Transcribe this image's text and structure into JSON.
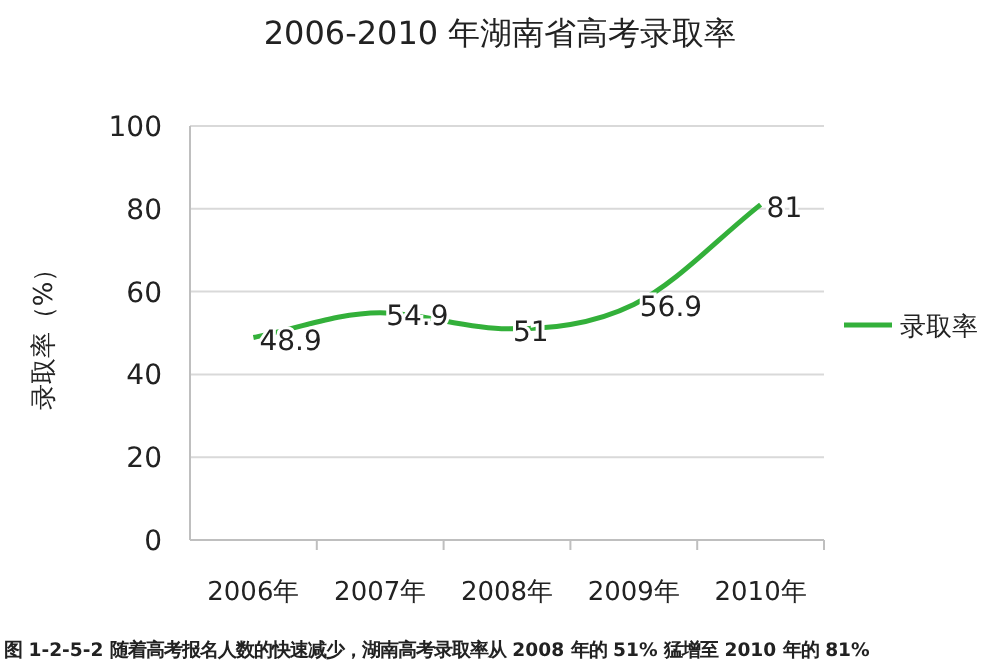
{
  "chart_data": {
    "type": "line",
    "title": "2006-2010 年湖南省高考录取率",
    "ylabel": "录取率（%）",
    "categories": [
      "2006年",
      "2007年",
      "2008年",
      "2009年",
      "2010年"
    ],
    "series": [
      {
        "name": "录取率",
        "color": "#33b03a",
        "values": [
          48.9,
          54.9,
          51,
          56.9,
          81
        ]
      }
    ],
    "ylim": [
      0,
      100
    ],
    "yticks": [
      0,
      20,
      40,
      60,
      80,
      100
    ],
    "grid": "y",
    "legend": "right",
    "data_labels": true,
    "marker": "none",
    "line_style": "solid",
    "annotations": [
      "图 1-2-5-2 随着高考报名人数的快速减少，湖南高考录取率从 2008 年的 51% 猛增至 2010 年的 81%"
    ]
  }
}
